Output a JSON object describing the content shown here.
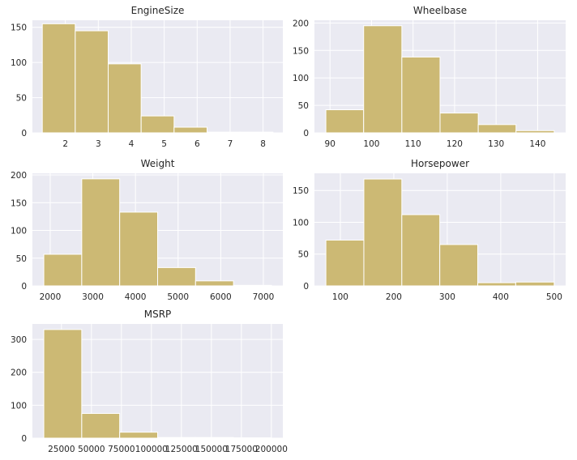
{
  "chart_data": [
    {
      "type": "bar",
      "title": "EngineSize",
      "bin_edges": [
        1.3,
        2.3,
        3.3,
        4.3,
        5.3,
        6.3,
        7.3,
        8.3
      ],
      "values": [
        155,
        145,
        98,
        24,
        8,
        1,
        1
      ],
      "xlim": [
        1.0,
        8.6
      ],
      "ylim": [
        0,
        160
      ],
      "xticks": [
        2,
        3,
        4,
        5,
        6,
        7,
        8
      ],
      "yticks": [
        0,
        50,
        100,
        150
      ],
      "bar_color": "#ccb974"
    },
    {
      "type": "bar",
      "title": "Wheelbase",
      "bin_edges": [
        89,
        98.1,
        107.3,
        116.5,
        125.7,
        134.8,
        144
      ],
      "values": [
        42,
        195,
        138,
        36,
        15,
        4
      ],
      "xlim": [
        86.25,
        146.75
      ],
      "ylim": [
        0,
        205
      ],
      "xticks": [
        90,
        100,
        110,
        120,
        130,
        140
      ],
      "yticks": [
        0,
        50,
        100,
        150,
        200
      ],
      "bar_color": "#ccb974"
    },
    {
      "type": "bar",
      "title": "Weight",
      "bin_edges": [
        1850,
        2740,
        3630,
        4520,
        5410,
        6300,
        7190
      ],
      "values": [
        57,
        193,
        133,
        33,
        9,
        1
      ],
      "xlim": [
        1583,
        7457
      ],
      "ylim": [
        0,
        203
      ],
      "xticks": [
        2000,
        3000,
        4000,
        5000,
        6000,
        7000
      ],
      "yticks": [
        0,
        50,
        100,
        150,
        200
      ],
      "bar_color": "#ccb974"
    },
    {
      "type": "bar",
      "title": "Horsepower",
      "bin_edges": [
        73,
        144,
        215,
        286,
        357,
        428,
        500
      ],
      "values": [
        72,
        168,
        112,
        65,
        5,
        6
      ],
      "xlim": [
        51.6,
        521.4
      ],
      "ylim": [
        0,
        177
      ],
      "xticks": [
        100,
        200,
        300,
        400,
        500
      ],
      "yticks": [
        0,
        50,
        100,
        150
      ],
      "bar_color": "#ccb974"
    },
    {
      "type": "bar",
      "title": "MSRP",
      "bin_edges": [
        10280,
        41911,
        73542,
        105173,
        136804,
        168435,
        200067
      ],
      "values": [
        330,
        75,
        18,
        2,
        2,
        1
      ],
      "xlim": [
        800,
        209556
      ],
      "ylim": [
        0,
        347
      ],
      "xticks": [
        25000,
        50000,
        75000,
        100000,
        125000,
        150000,
        175000,
        200000
      ],
      "yticks": [
        0,
        100,
        200,
        300
      ],
      "bar_color": "#ccb974"
    }
  ],
  "style": {
    "axes_background": "#eaeaf2",
    "grid_color": "#ffffff",
    "bar_edge_color": "#ffffff"
  }
}
